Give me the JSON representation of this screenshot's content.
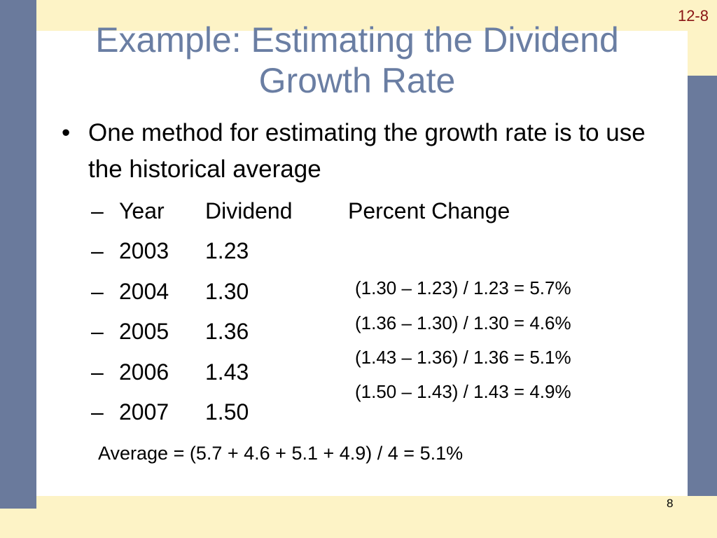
{
  "slide_code": "12-8",
  "title": "Example: Estimating the Dividend Growth Rate",
  "bullet": "One method for estimating the growth rate is to use the historical average",
  "table": {
    "headers": [
      "Year",
      "Dividend",
      "Percent Change"
    ],
    "rows": [
      {
        "year": "2003",
        "dividend": "1.23"
      },
      {
        "year": "2004",
        "dividend": "1.30"
      },
      {
        "year": "2005",
        "dividend": "1.36"
      },
      {
        "year": "2006",
        "dividend": "1.43"
      },
      {
        "year": "2007",
        "dividend": "1.50"
      }
    ]
  },
  "calculations": [
    "(1.30 – 1.23) / 1.23 = 5.7%",
    "(1.36 – 1.30) / 1.30 = 4.6%",
    "(1.43 – 1.36) / 1.36 = 5.1%",
    "(1.50 – 1.43) / 1.43 = 4.9%"
  ],
  "average": "Average = (5.7 + 4.6 + 5.1 + 4.9) / 4 = 5.1%",
  "page_number": "8",
  "colors": {
    "frame_blue": "#6a7a9c",
    "frame_cream": "#fdf3c6",
    "title": "#6a7ea3",
    "slide_code": "#8a1414"
  }
}
